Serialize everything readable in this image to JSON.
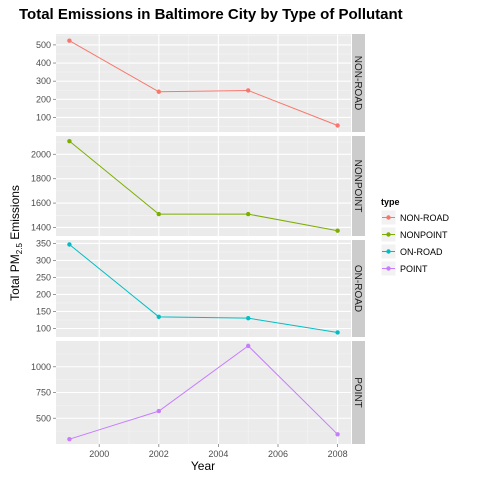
{
  "chart_data": {
    "type": "line",
    "title": "Total Emissions in Baltimore City by Type of Pollutant",
    "xlabel": "Year",
    "ylabel": "Total PM",
    "ylabel_sub": "2.5",
    "ylabel_suffix": " Emissions",
    "x": [
      1999,
      2002,
      2005,
      2008
    ],
    "x_ticks": [
      2000,
      2002,
      2004,
      2006,
      2008
    ],
    "x_tick_labels": [
      "2000",
      "2002",
      "2004",
      "2006",
      "2008"
    ],
    "xlim": [
      1998.55,
      2008.45
    ],
    "grid": true,
    "legend": {
      "title": "type",
      "position": "right",
      "entries": [
        "NON-ROAD",
        "NONPOINT",
        "ON-ROAD",
        "POINT"
      ]
    },
    "facets": "stacked vertically, free y scales",
    "series": [
      {
        "name": "NON-ROAD",
        "color": "#F8766D",
        "values": [
          522.9,
          241.8,
          248.9,
          55.8
        ],
        "ylim": [
          20,
          560
        ],
        "y_ticks": [
          100,
          200,
          300,
          400,
          500
        ],
        "y_tick_labels": [
          "100",
          "200",
          "300",
          "400",
          "500"
        ]
      },
      {
        "name": "NONPOINT",
        "color": "#7CAE00",
        "values": [
          2107.6,
          1509.5,
          1509.5,
          1373.2
        ],
        "ylim": [
          1330,
          2150
        ],
        "y_ticks": [
          1400,
          1600,
          1800,
          2000
        ],
        "y_tick_labels": [
          "1400",
          "1600",
          "1800",
          "2000"
        ]
      },
      {
        "name": "ON-ROAD",
        "color": "#00BFC4",
        "values": [
          346.8,
          134.3,
          130.4,
          88.3
        ],
        "ylim": [
          75,
          360
        ],
        "y_ticks": [
          100,
          150,
          200,
          250,
          300,
          350
        ],
        "y_tick_labels": [
          "100",
          "150",
          "200",
          "250",
          "300",
          "350"
        ]
      },
      {
        "name": "POINT",
        "color": "#C77CFF",
        "values": [
          296.8,
          569.3,
          1202.6,
          344.1
        ],
        "ylim": [
          250,
          1250
        ],
        "y_ticks": [
          500,
          750,
          1000
        ],
        "y_tick_labels": [
          "500",
          "750",
          "1000"
        ]
      }
    ]
  }
}
